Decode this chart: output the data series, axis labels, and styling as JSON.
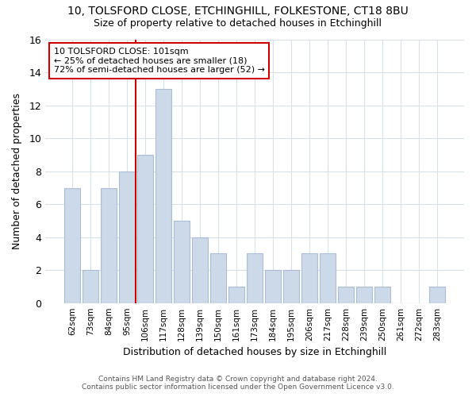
{
  "title": "10, TOLSFORD CLOSE, ETCHINGHILL, FOLKESTONE, CT18 8BU",
  "subtitle": "Size of property relative to detached houses in Etchinghill",
  "xlabel": "Distribution of detached houses by size in Etchinghill",
  "ylabel": "Number of detached properties",
  "categories": [
    "62sqm",
    "73sqm",
    "84sqm",
    "95sqm",
    "106sqm",
    "117sqm",
    "128sqm",
    "139sqm",
    "150sqm",
    "161sqm",
    "173sqm",
    "184sqm",
    "195sqm",
    "206sqm",
    "217sqm",
    "228sqm",
    "239sqm",
    "250sqm",
    "261sqm",
    "272sqm",
    "283sqm"
  ],
  "values": [
    7,
    2,
    7,
    8,
    9,
    13,
    5,
    4,
    3,
    1,
    3,
    2,
    2,
    3,
    3,
    1,
    1,
    1,
    0,
    0,
    1
  ],
  "bar_color": "#ccd9e8",
  "bar_edge_color": "#aabdd4",
  "vline_x": 4.0,
  "vline_color": "#cc0000",
  "annotation_title": "10 TOLSFORD CLOSE: 101sqm",
  "annotation_line1": "← 25% of detached houses are smaller (18)",
  "annotation_line2": "72% of semi-detached houses are larger (52) →",
  "annotation_box_color": "#cc0000",
  "ylim": [
    0,
    16
  ],
  "yticks": [
    0,
    2,
    4,
    6,
    8,
    10,
    12,
    14,
    16
  ],
  "footer_line1": "Contains HM Land Registry data © Crown copyright and database right 2024.",
  "footer_line2": "Contains public sector information licensed under the Open Government Licence v3.0.",
  "bg_color": "#ffffff",
  "plot_bg_color": "#ffffff",
  "grid_color": "#d8e0e8"
}
